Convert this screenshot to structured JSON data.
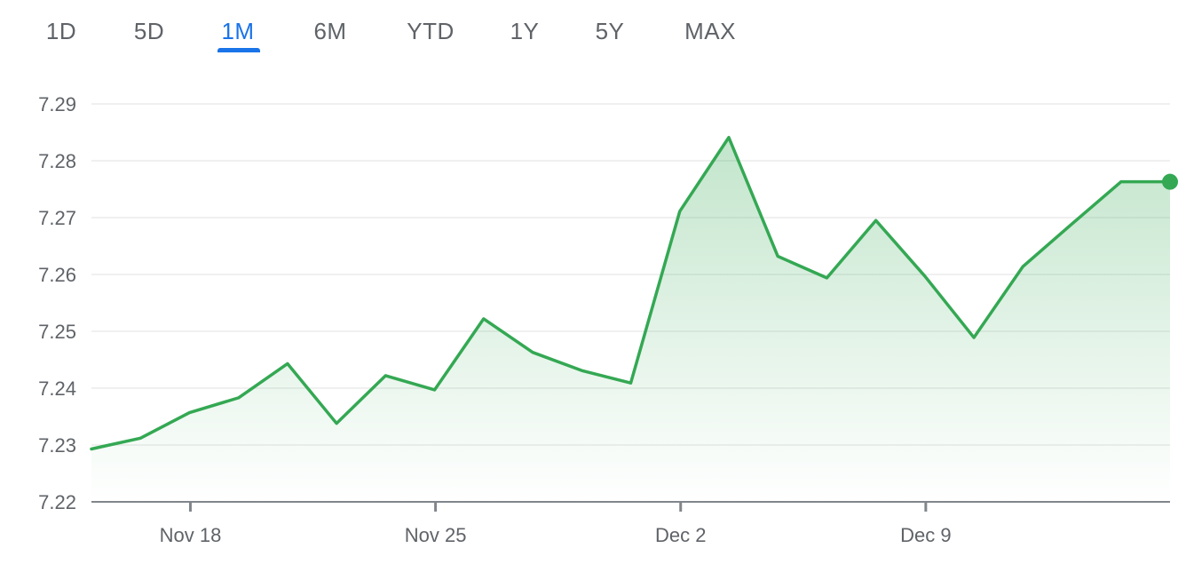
{
  "range_tabs": {
    "items": [
      {
        "label": "1D",
        "key": "1d"
      },
      {
        "label": "5D",
        "key": "5d"
      },
      {
        "label": "1M",
        "key": "1m"
      },
      {
        "label": "6M",
        "key": "6m"
      },
      {
        "label": "YTD",
        "key": "ytd"
      },
      {
        "label": "1Y",
        "key": "1y"
      },
      {
        "label": "5Y",
        "key": "5y"
      },
      {
        "label": "MAX",
        "key": "max"
      }
    ],
    "active": "1M",
    "active_color": "#1a73e8",
    "inactive_color": "#5f6368"
  },
  "chart_data": {
    "type": "area",
    "title": "",
    "xlabel": "",
    "ylabel": "",
    "ylim": [
      7.22,
      7.29
    ],
    "yticks": [
      7.22,
      7.23,
      7.24,
      7.25,
      7.26,
      7.27,
      7.28,
      7.29
    ],
    "ytick_labels": [
      "7.22",
      "7.23",
      "7.24",
      "7.25",
      "7.26",
      "7.27",
      "7.28",
      "7.29"
    ],
    "xticks": [
      {
        "date": "Nov 18",
        "index": 2
      },
      {
        "date": "Nov 25",
        "index": 7
      },
      {
        "date": "Dec 2",
        "index": 12
      },
      {
        "date": "Dec 9",
        "index": 17
      }
    ],
    "grid": true,
    "line_color": "#34a853",
    "fill_color": "#34a853",
    "series": [
      {
        "values": [
          7.2293,
          7.2312,
          7.2357,
          7.2383,
          7.2443,
          7.2338,
          7.2422,
          7.2397,
          7.2522,
          7.2463,
          7.2431,
          7.2409,
          7.2711,
          7.2841,
          7.2632,
          7.2594,
          7.2695,
          7.2597,
          7.2489,
          7.2614,
          7.2689,
          7.2763,
          7.2763
        ]
      }
    ]
  }
}
